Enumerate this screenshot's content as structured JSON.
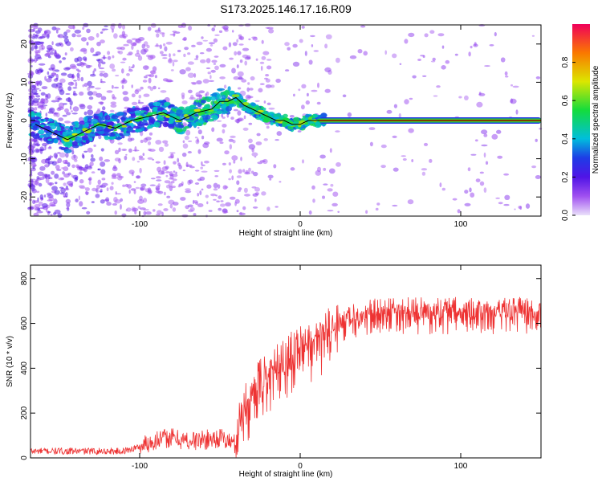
{
  "title": "S173.2025.146.17.16.R09",
  "chart_data": [
    {
      "type": "heatmap",
      "xlabel": "Height of straight line (km)",
      "ylabel": "Frequency (Hz)",
      "xlim": [
        -168,
        150
      ],
      "ylim": [
        -25,
        25
      ],
      "x_ticks": [
        -100,
        0,
        100
      ],
      "y_ticks": [
        -20,
        -10,
        0,
        10,
        20
      ],
      "grid": false,
      "colorbar": {
        "label": "Normalized spectral amplitude",
        "range": [
          0,
          1
        ],
        "ticks": [
          0.0,
          0.2,
          0.4,
          0.6,
          0.8
        ]
      },
      "ridge_line": {
        "x": [
          -165,
          -155,
          -145,
          -135,
          -125,
          -115,
          -105,
          -95,
          -85,
          -75,
          -65,
          -55,
          -50,
          -45,
          -40,
          -35,
          -30,
          -25,
          -20,
          -15,
          -10,
          -5,
          0,
          5,
          10,
          15,
          150
        ],
        "y": [
          -1,
          -3,
          -5,
          -3,
          -1,
          -2,
          0,
          1,
          2,
          0,
          2,
          3,
          5,
          5,
          6,
          4,
          3,
          2,
          1,
          0,
          0,
          -1,
          -1,
          0,
          0,
          0,
          0
        ]
      }
    },
    {
      "type": "line",
      "xlabel": "Height of straight line (km)",
      "ylabel": "SNR (10 * v/v)",
      "xlim": [
        -168,
        150
      ],
      "ylim": [
        0,
        860
      ],
      "x_ticks": [
        -100,
        0,
        100
      ],
      "y_ticks": [
        0,
        200,
        400,
        600,
        800
      ],
      "grid": false,
      "color": "#ee3333",
      "series": [
        {
          "x": [
            -168,
            -150,
            -130,
            -110,
            -100,
            -90,
            -80,
            -70,
            -60,
            -50,
            -40,
            -35,
            -30,
            -25,
            -20,
            -10,
            0,
            10,
            20,
            25,
            30,
            40,
            50,
            60,
            70,
            80,
            90,
            100,
            110,
            120,
            130,
            140,
            150
          ],
          "values": [
            30,
            30,
            30,
            30,
            50,
            80,
            90,
            75,
            80,
            90,
            60,
            160,
            230,
            280,
            310,
            380,
            420,
            470,
            520,
            560,
            600,
            610,
            615,
            620,
            620,
            620,
            620,
            620,
            620,
            620,
            620,
            620,
            620
          ]
        }
      ]
    }
  ]
}
